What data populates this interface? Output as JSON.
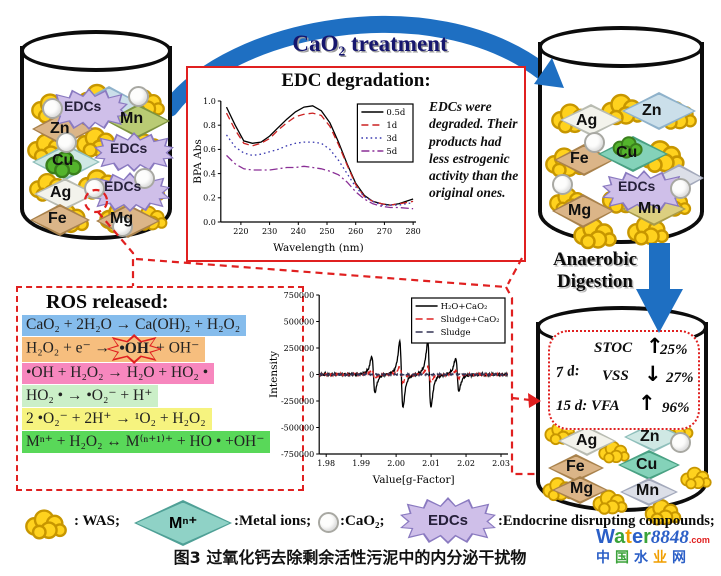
{
  "top": {
    "treatment": "CaO₂ treatment"
  },
  "edc_box": {
    "title": "EDC degradation:",
    "note": "EDCs were degraded. Their products had less estrogenic activity than the original ones."
  },
  "anaerobic": {
    "line1": "Anaerobic",
    "line2": "Digestion"
  },
  "ros": {
    "title": "ROS released:",
    "equations": [
      {
        "text": "CaO₂ + 2H₂O → Ca(OH)₂ + H₂O₂",
        "bg": "#85BCEC"
      },
      {
        "pre": "H₂O₂ + e⁻ →",
        "star": "•OH",
        "post": "+ OH⁻",
        "bg": "#F6BE7E"
      },
      {
        "text": "•OH + H₂O₂ → H₂O + HO₂ •",
        "bg": "#F787BE"
      },
      {
        "text": "HO₂ • → •O₂⁻ + H⁺",
        "bg": "#CBEFC8"
      },
      {
        "text": "2 •O₂⁻ + 2H⁺ → ¹O₂ + H₂O₂",
        "bg": "#F6F37F"
      },
      {
        "text": "Mⁿ⁺ + H₂O₂ ↔ M⁽ⁿ⁺¹⁾⁺ + HO • +OH⁻",
        "bg": "#59D859"
      }
    ]
  },
  "cyl_left": {
    "labels": [
      "EDCs",
      "Zn",
      "Mn",
      "EDCs",
      "Cu",
      "Ag",
      "EDCs",
      "Fe",
      "Mg"
    ]
  },
  "cyl_right": {
    "labels": [
      "Ag",
      "Zn",
      "Fe",
      "Cu",
      "EDCs",
      "Mg",
      "Mn"
    ]
  },
  "cyl_digest": {
    "labels": [
      "Ag",
      "Zn",
      "Fe",
      "Cu",
      "Mg",
      "Mn"
    ]
  },
  "digest_stats": {
    "t7": "7 d:",
    "stoc": "STOC",
    "stoc_arrow": "↑",
    "stoc_val": "25%",
    "vss": "VSS",
    "vss_arrow": "↓",
    "vss_val": "27%",
    "t15": "15 d: VFA",
    "vfa_arrow": "↑",
    "vfa_val": "96%"
  },
  "legend": {
    "was": ": WAS;",
    "mn_symbol": "Mⁿ⁺",
    "metal": ":Metal ions;",
    "cao2": ":CaO₂;",
    "edcs_symbol": "EDCs",
    "edcs": ":Endocrine disrupting compounds;"
  },
  "caption": "图3 过氧化钙去除剩余活性污泥中的内分泌干扰物",
  "watermark": {
    "brand": [
      [
        "W",
        "#2B5FC7"
      ],
      [
        "a",
        "#3BA33A"
      ],
      [
        "t",
        "#F09E00"
      ],
      [
        "e",
        "#2B5FC7"
      ],
      [
        "r",
        "#3BA33A"
      ]
    ],
    "num": "8848",
    "com": ".com",
    "cn": [
      [
        "中",
        "#2B5FC7"
      ],
      [
        "国",
        "#3BA33A"
      ],
      [
        "水",
        "#2B5FC7"
      ],
      [
        "业",
        "#F09E00"
      ],
      [
        "网",
        "#2B5FC7"
      ]
    ]
  },
  "colors": {
    "arrow_blue": "#1E6FC2",
    "box_red": "#E02020",
    "title_navy": "#16166E",
    "was_yellow": "#FFD21E",
    "edcs_purple": "#CFBFE9"
  },
  "chart_data": [
    {
      "type": "line",
      "title": "",
      "xlabel": "Wavelength (nm)",
      "ylabel": "BPA Abs",
      "xlim": [
        213,
        281
      ],
      "ylim": [
        0,
        1.0
      ],
      "xtick_vals": [
        220,
        230,
        240,
        250,
        260,
        270,
        280
      ],
      "xtick_labels": [
        "220",
        "230",
        "240",
        "250",
        "260",
        "270",
        "280"
      ],
      "ytick_vals": [
        0,
        0.2,
        0.4,
        0.6,
        0.8,
        1.0
      ],
      "ytick_labels": [
        "0.0",
        "0.2",
        "0.4",
        "0.6",
        "0.8",
        "1.0"
      ],
      "grid": false,
      "legend_position": "top-right",
      "x": [
        215,
        218,
        221,
        224,
        227,
        230,
        233,
        236,
        239,
        242,
        245,
        248,
        251,
        254,
        257,
        260,
        263,
        266,
        269,
        272,
        275,
        280
      ],
      "series": [
        {
          "name": "0.5d",
          "style": "solid",
          "color": "#000000",
          "y": [
            0.95,
            0.8,
            0.67,
            0.65,
            0.66,
            0.71,
            0.78,
            0.85,
            0.91,
            0.95,
            0.96,
            0.92,
            0.82,
            0.66,
            0.48,
            0.32,
            0.22,
            0.17,
            0.15,
            0.14,
            0.15,
            0.19
          ]
        },
        {
          "name": "1d",
          "style": "dashed",
          "color": "#CC2222",
          "y": [
            0.9,
            0.76,
            0.65,
            0.63,
            0.65,
            0.69,
            0.76,
            0.82,
            0.87,
            0.89,
            0.9,
            0.88,
            0.79,
            0.64,
            0.47,
            0.31,
            0.21,
            0.17,
            0.15,
            0.14,
            0.15,
            0.17
          ]
        },
        {
          "name": "3d",
          "style": "dotted",
          "color": "#3A3AB0",
          "y": [
            0.72,
            0.62,
            0.57,
            0.55,
            0.56,
            0.58,
            0.6,
            0.63,
            0.65,
            0.66,
            0.66,
            0.65,
            0.6,
            0.51,
            0.4,
            0.29,
            0.21,
            0.17,
            0.14,
            0.14,
            0.14,
            0.16
          ]
        },
        {
          "name": "5d",
          "style": "dashdot",
          "color": "#8A2F96",
          "y": [
            0.55,
            0.48,
            0.44,
            0.43,
            0.43,
            0.43,
            0.44,
            0.45,
            0.45,
            0.46,
            0.45,
            0.44,
            0.42,
            0.39,
            0.33,
            0.25,
            0.19,
            0.15,
            0.13,
            0.12,
            0.12,
            0.11
          ]
        }
      ]
    },
    {
      "type": "line",
      "title": "",
      "xlabel": "Value[g-Factor]",
      "ylabel": "Intensity",
      "xlim": [
        1.978,
        2.032
      ],
      "ylim": [
        -750000,
        750000
      ],
      "xtick_vals": [
        1.98,
        1.99,
        2.0,
        2.01,
        2.02,
        2.03
      ],
      "xtick_labels": [
        "1.98",
        "1.99",
        "2.00",
        "2.01",
        "2.02",
        "2.03"
      ],
      "ytick_vals": [
        750000,
        500000,
        250000,
        0,
        -250000,
        -500000,
        -750000
      ],
      "ytick_labels": [
        "750000",
        "500000",
        "250000",
        "0",
        "-250000",
        "-500000",
        "-750000"
      ],
      "grid": false,
      "legend_position": "top-right",
      "series": [
        {
          "name": "H₂O+CaO₂",
          "style": "solid",
          "color": "#000000",
          "noise": 14000,
          "peaks": [
            [
              1.9935,
              340000
            ],
            [
              2.0015,
              620000
            ],
            [
              2.0095,
              620000
            ],
            [
              2.0175,
              310000
            ]
          ]
        },
        {
          "name": "Sludge+CaO₂",
          "style": "dashed",
          "color": "#DD2222",
          "noise": 11000,
          "peaks": [
            [
              1.9935,
              80000
            ],
            [
              2.0015,
              150000
            ],
            [
              2.0095,
              150000
            ],
            [
              2.0175,
              70000
            ]
          ]
        },
        {
          "name": "Sludge",
          "style": "dashed",
          "color": "#333355",
          "noise": 9000,
          "peaks": []
        }
      ]
    }
  ]
}
